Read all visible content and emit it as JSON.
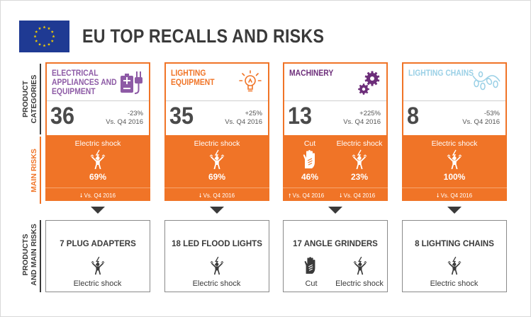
{
  "header": {
    "title": "EU TOP RECALLS AND RISKS",
    "flag_icon": "eu-flag-icon"
  },
  "row_labels": {
    "categories": [
      "PRODUCT",
      "CATEGORIES"
    ],
    "risks": [
      "MAIN RISKS"
    ],
    "products": [
      "PRODUCTS",
      "AND MAIN RISKS"
    ]
  },
  "colors": {
    "orange": "#f07427",
    "electrical": "#8e5ba6",
    "lighting": "#f07427",
    "machinery": "#6d2e7a",
    "chains": "#9ad0e6",
    "dark": "#3a3a3a"
  },
  "columns": [
    {
      "category": {
        "name": "ELECTRICAL APPLIANCES AND EQUIPMENT",
        "icon": "battery-plug-icon",
        "count": "36",
        "change": "-23%",
        "versus": "Vs. Q4 2016"
      },
      "risks": [
        {
          "label": "Electric shock",
          "icon": "electric-shock-icon",
          "pct": "69%",
          "trend": "down",
          "versus": "Vs. Q4 2016"
        }
      ],
      "product": {
        "title": "7 PLUG ADAPTERS",
        "risks": [
          {
            "label": "Electric shock",
            "icon": "electric-shock-icon"
          }
        ]
      }
    },
    {
      "category": {
        "name": "LIGHTING EQUIPMENT",
        "icon": "light-bulb-icon",
        "count": "35",
        "change": "+25%",
        "versus": "Vs. Q4 2016"
      },
      "risks": [
        {
          "label": "Electric shock",
          "icon": "electric-shock-icon",
          "pct": "69%",
          "trend": "down",
          "versus": "Vs. Q4 2016"
        }
      ],
      "product": {
        "title": "18 LED FLOOD LIGHTS",
        "risks": [
          {
            "label": "Electric shock",
            "icon": "electric-shock-icon"
          }
        ]
      }
    },
    {
      "category": {
        "name": "MACHINERY",
        "icon": "gears-icon",
        "count": "13",
        "change": "+225%",
        "versus": "Vs. Q4 2016"
      },
      "risks": [
        {
          "label": "Cut",
          "icon": "cut-hand-icon",
          "pct": "46%",
          "trend": "up",
          "versus": "Vs. Q4 2016"
        },
        {
          "label": "Electric shock",
          "icon": "electric-shock-icon",
          "pct": "23%",
          "trend": "down",
          "versus": "Vs. Q4 2016"
        }
      ],
      "product": {
        "title": "17 ANGLE GRINDERS",
        "risks": [
          {
            "label": "Cut",
            "icon": "cut-hand-icon"
          },
          {
            "label": "Electric shock",
            "icon": "electric-shock-icon"
          }
        ]
      }
    },
    {
      "category": {
        "name": "LIGHTING CHAINS",
        "icon": "lighting-chain-icon",
        "count": "8",
        "change": "-53%",
        "versus": "Vs. Q4 2016"
      },
      "risks": [
        {
          "label": "Electric shock",
          "icon": "electric-shock-icon",
          "pct": "100%",
          "trend": "down",
          "versus": "Vs. Q4 2016"
        }
      ],
      "product": {
        "title": "8 LIGHTING CHAINS",
        "risks": [
          {
            "label": "Electric shock",
            "icon": "electric-shock-icon"
          }
        ]
      }
    }
  ]
}
